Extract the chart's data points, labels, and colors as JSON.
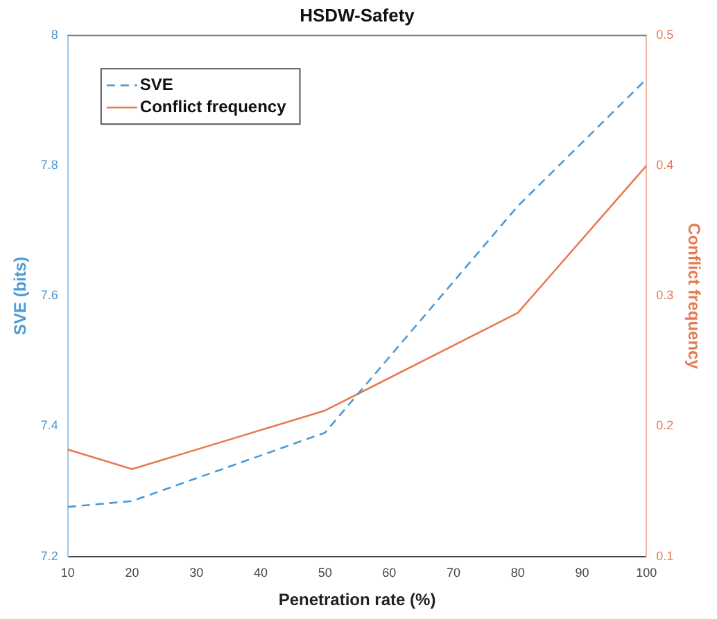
{
  "chart_data": {
    "type": "line",
    "title": "HSDW-Safety",
    "xlabel": "Penetration rate (%)",
    "ylabel": "SVE (bits)",
    "y2label": "Conflict frequency",
    "xlim": [
      10,
      100
    ],
    "xticks": [
      10,
      20,
      30,
      40,
      50,
      60,
      70,
      80,
      90,
      100
    ],
    "ylim": [
      7.2,
      8
    ],
    "yticks": [
      7.2,
      7.4,
      7.6,
      7.8,
      8
    ],
    "y2lim": [
      0.1,
      0.5
    ],
    "y2ticks": [
      0.1,
      0.2,
      0.3,
      0.4,
      0.5
    ],
    "legend": "top left",
    "grid": false,
    "series": [
      {
        "name": "SVE",
        "color": "#4a9ad8",
        "line_style": "dashed",
        "x": [
          10,
          20,
          50,
          80,
          100
        ],
        "values": [
          7.276,
          7.285,
          7.39,
          7.738,
          7.933
        ]
      },
      {
        "name": "Conflict frequency",
        "color": "#e8794f",
        "line_style": "solid",
        "axis": "y2",
        "x": [
          10,
          20,
          50,
          80,
          100
        ],
        "values": [
          0.182,
          0.167,
          0.212,
          0.287,
          0.4
        ]
      }
    ]
  }
}
